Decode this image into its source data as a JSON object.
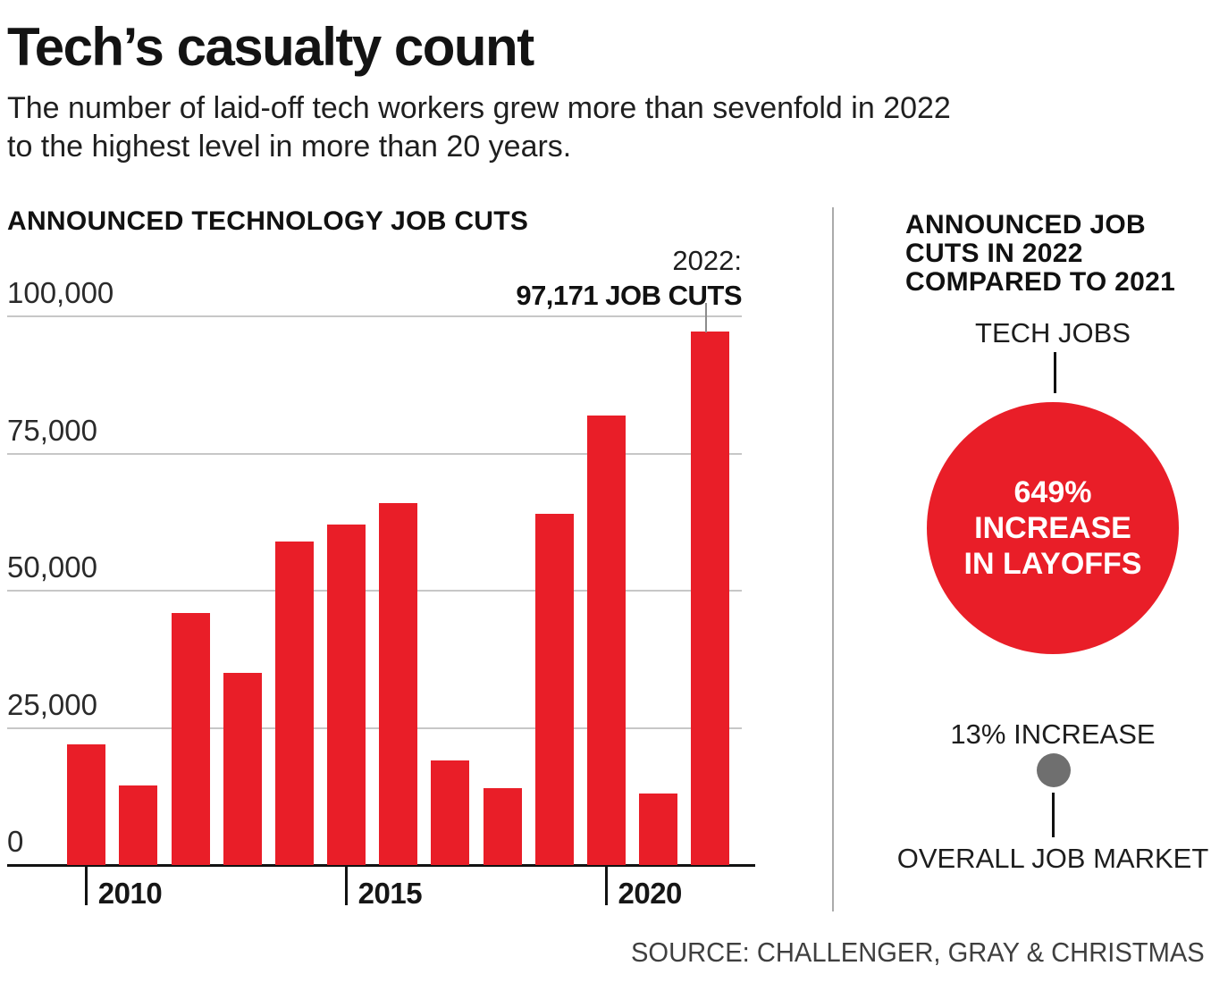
{
  "page": {
    "title": "Tech’s casualty count",
    "subtitle_lines": [
      "The number of laid-off tech workers grew more than sevenfold in 2022",
      "to the highest level in more than 20 years."
    ],
    "source": "SOURCE: CHALLENGER, GRAY & CHRISTMAS"
  },
  "colors": {
    "bar_red": "#e91e28",
    "circle_gray": "#6f6f6f",
    "gridline": "#c7c7c7",
    "axis_black": "#121212",
    "divider_gray": "#ababab",
    "text_black": "#161616",
    "circle_text_white": "#ffffff"
  },
  "chart_data": {
    "type": "bar",
    "title": "ANNOUNCED TECHNOLOGY JOB CUTS",
    "categories": [
      "2010",
      "2011",
      "2012",
      "2013",
      "2014",
      "2015",
      "2016",
      "2017",
      "2018",
      "2019",
      "2020",
      "2021",
      "2022"
    ],
    "values": [
      22000,
      14500,
      46000,
      35000,
      59000,
      62000,
      66000,
      19000,
      14000,
      64000,
      82000,
      13000,
      97171
    ],
    "xlabel": "",
    "ylabel": "",
    "ylim": [
      0,
      100000
    ],
    "yticks": [
      0,
      25000,
      50000,
      75000,
      100000
    ],
    "ytick_labels": [
      "0",
      "25,000",
      "50,000",
      "75,000",
      "100,000"
    ],
    "xticks": [
      "2010",
      "2015",
      "2020"
    ],
    "grid": true,
    "bar_color": "#e91e28",
    "annotation": {
      "line1": "2022:",
      "line2": "97,171 JOB CUTS",
      "target_year": "2022",
      "target_value": 97171
    }
  },
  "comparison": {
    "title_lines": [
      "ANNOUNCED JOB",
      "CUTS IN 2022",
      "COMPARED TO 2021"
    ],
    "tech": {
      "label": "TECH JOBS",
      "circle_lines": [
        "649%",
        "INCREASE",
        "IN LAYOFFS"
      ],
      "pct_increase": 649
    },
    "overall": {
      "label": "OVERALL JOB MARKET",
      "value_label": "13% INCREASE",
      "pct_increase": 13
    }
  }
}
